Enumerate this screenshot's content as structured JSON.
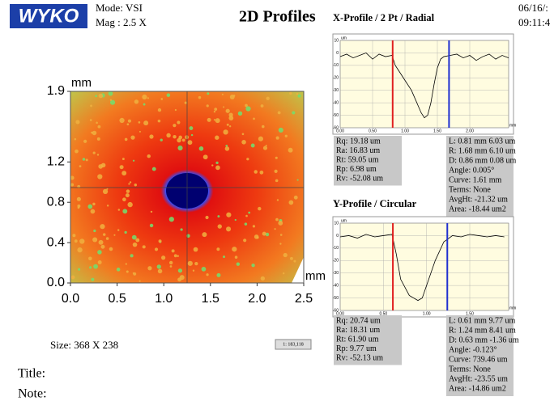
{
  "header": {
    "logo": "WYKO",
    "mode": "Mode: VSI",
    "mag": "Mag : 2.5 X",
    "title": "2D Profiles",
    "date": "06/16/:",
    "time": "09:11:4"
  },
  "height_map": {
    "x_unit": "mm",
    "y_unit": "mm",
    "xlim": [
      0,
      2.5
    ],
    "ylim": [
      0,
      1.9
    ],
    "xticks": [
      {
        "value": 0,
        "label": "0.0"
      },
      0.5,
      {
        "value": 1,
        "label": "1.0"
      },
      1.5,
      {
        "value": 2,
        "label": "2.0"
      },
      2.5
    ],
    "yticks": [
      {
        "value": 0,
        "label": "0.0"
      },
      0.4,
      0.8,
      1.2,
      1.9
    ]
  },
  "size_label": "Size: 368 X 238",
  "scale_label": "1: 183,118",
  "title_label": "Title:",
  "note_label": "Note:",
  "profiles": [
    {
      "title": "X-Profile / 2 Pt / Radial",
      "y_unit": "um",
      "x_unit": "mm",
      "color": "#000000",
      "xlim": [
        0,
        2.6
      ],
      "ylim": [
        -60,
        10
      ],
      "xticks": [
        {
          "value": 0,
          "label": "0.00"
        },
        {
          "value": 0.5,
          "label": "0.50"
        },
        {
          "value": 1,
          "label": "1.00"
        },
        {
          "value": 1.5,
          "label": "1.50"
        },
        {
          "value": 2,
          "label": "2.00"
        }
      ],
      "yticks": [
        10,
        0,
        -10,
        -20,
        -30,
        -40,
        -50,
        -60
      ],
      "x": [
        0,
        0.1,
        0.2,
        0.3,
        0.4,
        0.5,
        0.6,
        0.7,
        0.8,
        0.85,
        0.9,
        1.0,
        1.1,
        1.2,
        1.25,
        1.3,
        1.35,
        1.4,
        1.45,
        1.5,
        1.55,
        1.6,
        1.7,
        1.8,
        1.9,
        2.0,
        2.1,
        2.2,
        2.3,
        2.4,
        2.5,
        2.6
      ],
      "values": [
        -3,
        -1,
        -4,
        -2,
        0,
        -5,
        -1,
        -3,
        -2,
        -10,
        -14,
        -22,
        -30,
        -42,
        -48,
        -52,
        -50,
        -40,
        -25,
        -12,
        -5,
        -3,
        -2,
        -1,
        -4,
        -2,
        -6,
        -3,
        -1,
        -5,
        -2,
        -4
      ],
      "cursors": [
        {
          "x": 0.81,
          "color": "#e02020"
        },
        {
          "x": 1.68,
          "color": "#2030d0"
        }
      ],
      "stats_left": [
        "Rq: 19.18 um",
        "Ra: 16.83 um",
        "Rt: 59.05 um",
        "Rp: 6.98 um",
        "Rv: -52.08 um"
      ],
      "stats_right": [
        "L: 0.81 mm 6.03 um",
        "R: 1.68 mm 6.10 um",
        "D: 0.86 mm 0.08 um",
        "Angle: 0.005°",
        "Curve: 1.61 mm",
        "Terms: None",
        "AvgHt: -21.32 um",
        "Area: -18.44 um2"
      ]
    },
    {
      "title": "Y-Profile / Circular",
      "y_unit": "um",
      "x_unit": "mm",
      "color": "#000000",
      "xlim": [
        0,
        1.95
      ],
      "ylim": [
        -60,
        10
      ],
      "xticks": [
        {
          "value": 0,
          "label": "0.00"
        },
        {
          "value": 0.5,
          "label": "0.50"
        },
        {
          "value": 1,
          "label": "1.00"
        },
        {
          "value": 1.5,
          "label": "1.50"
        }
      ],
      "yticks": [
        10,
        0,
        -10,
        -20,
        -30,
        -40,
        -50,
        -60
      ],
      "x": [
        0,
        0.1,
        0.2,
        0.3,
        0.4,
        0.5,
        0.6,
        0.65,
        0.7,
        0.8,
        0.9,
        0.95,
        1.0,
        1.1,
        1.2,
        1.3,
        1.4,
        1.5,
        1.6,
        1.7,
        1.8,
        1.9
      ],
      "values": [
        -1,
        0,
        -2,
        1,
        -1,
        0,
        1,
        -15,
        -35,
        -48,
        -52,
        -50,
        -40,
        -20,
        -5,
        0,
        -1,
        1,
        0,
        -1,
        0,
        -1
      ],
      "cursors": [
        {
          "x": 0.61,
          "color": "#e02020"
        },
        {
          "x": 1.24,
          "color": "#2030d0"
        }
      ],
      "stats_left": [
        "Rq: 20.74 um",
        "Ra: 18.31 um",
        "Rt: 61.90 um",
        "Rp: 9.77 um",
        "Rv: -52.13 um"
      ],
      "stats_right": [
        "L: 0.61 mm 9.77 um",
        "R: 1.24 mm 8.41 um",
        "D: 0.63 mm -1.36 um",
        "Angle: -0.123°",
        "Curve: 739.46 um",
        "Terms: None",
        "AvgHt: -23.55 um",
        "Area: -14.86 um2"
      ]
    }
  ]
}
